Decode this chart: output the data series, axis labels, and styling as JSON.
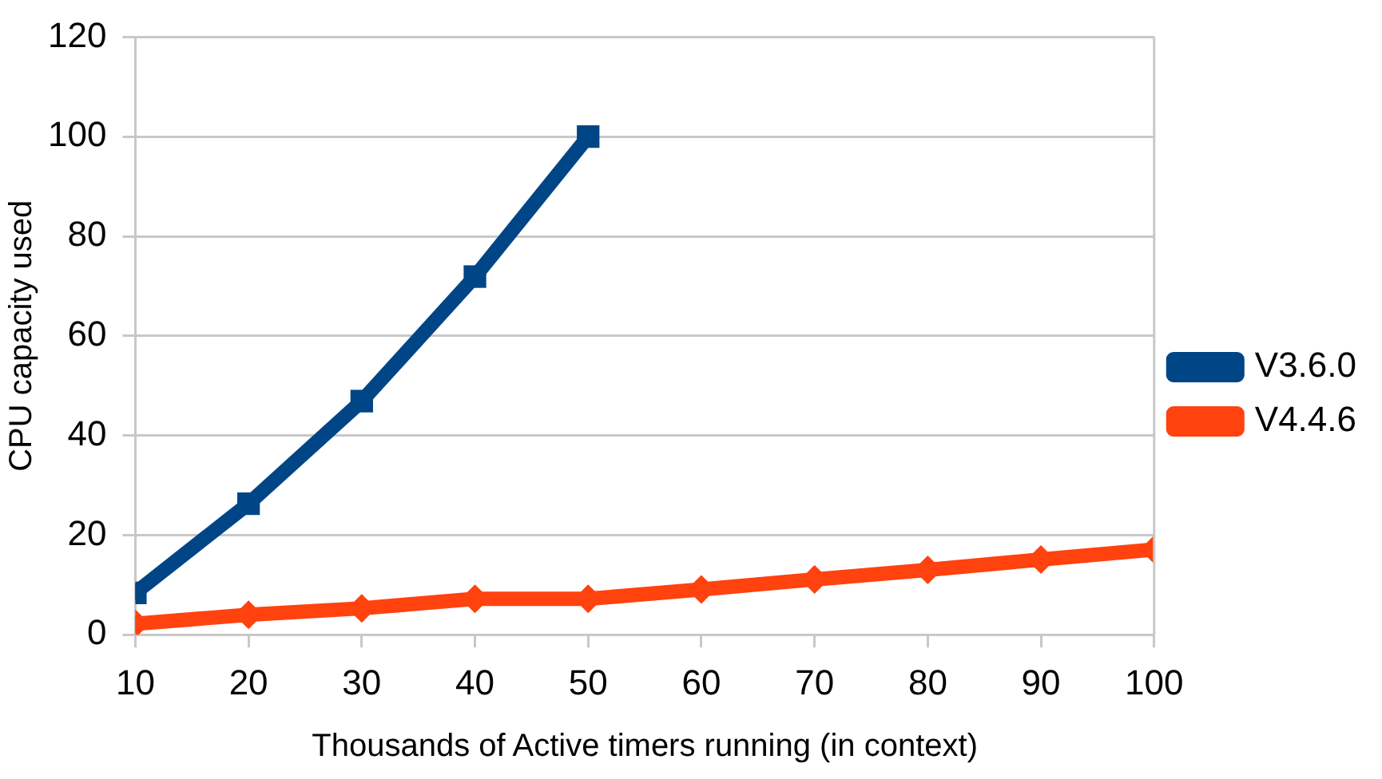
{
  "chart_data": {
    "type": "line",
    "xlabel": "Thousands of Active timers running (in context)",
    "ylabel": "CPU capacity used",
    "x": [
      10,
      20,
      30,
      40,
      50,
      60,
      70,
      80,
      90,
      100
    ],
    "series": [
      {
        "name": "V3.6.0",
        "color": "#004586",
        "marker": "square",
        "values": [
          8.4,
          26.3,
          46.9,
          71.9,
          100,
          null,
          null,
          null,
          null,
          null
        ]
      },
      {
        "name": "V4.4.6",
        "color": "#ff420e",
        "marker": "diamond",
        "values": [
          2.2,
          4,
          5.3,
          7.2,
          7.2,
          9.1,
          11.1,
          13,
          15.1,
          17.1
        ]
      }
    ],
    "xlim": [
      10,
      100
    ],
    "xticks": [
      10,
      20,
      30,
      40,
      50,
      60,
      70,
      80,
      90,
      100
    ],
    "ylim": [
      0,
      120
    ],
    "yticks": [
      0,
      20,
      40,
      60,
      80,
      100,
      120
    ],
    "grid": "y",
    "legend": "right",
    "line_style": "solid"
  }
}
